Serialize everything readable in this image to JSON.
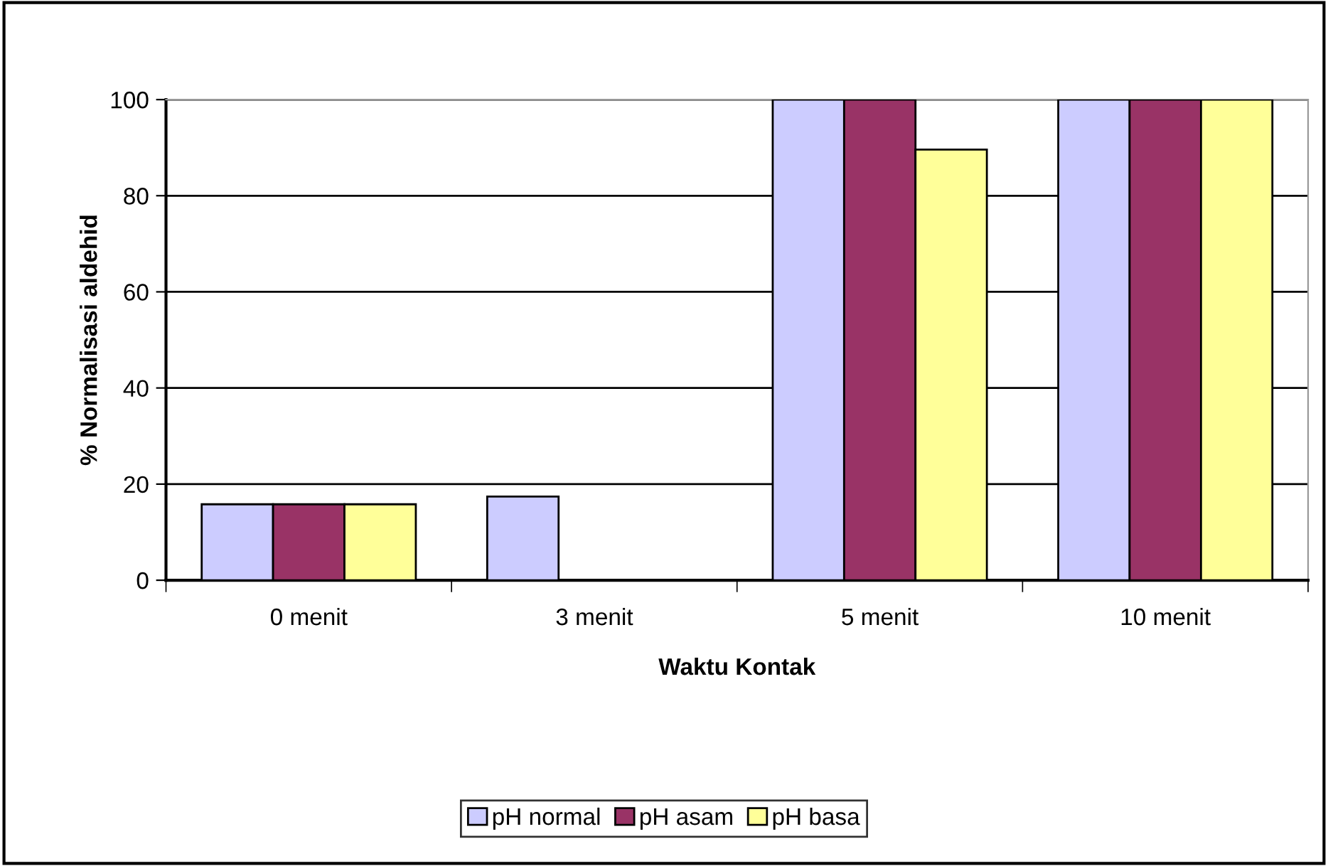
{
  "chart_data": {
    "type": "bar",
    "xlabel": "Waktu Kontak",
    "ylabel": "% Normalisasi aldehid",
    "categories": [
      "0 menit",
      "3 menit",
      "5 menit",
      "10 menit"
    ],
    "series": [
      {
        "name": "pH normal",
        "color": "#ccccff",
        "values": [
          15.8,
          17.4,
          100,
          100
        ]
      },
      {
        "name": "pH asam",
        "color": "#993366",
        "values": [
          15.8,
          null,
          100,
          100
        ]
      },
      {
        "name": "pH basa",
        "color": "#ffff99",
        "values": [
          15.8,
          null,
          89.6,
          100
        ]
      }
    ],
    "ylim": [
      0,
      100
    ],
    "yticks": [
      0,
      20,
      40,
      60,
      80,
      100
    ],
    "grid": "y",
    "legend": "bottom"
  }
}
